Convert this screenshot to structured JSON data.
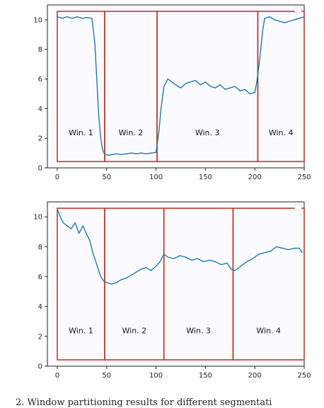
{
  "caption": "2.   Window partitioning results for different segmentati",
  "chart_data": [
    {
      "type": "line",
      "xlim": [
        -10,
        250
      ],
      "ylim": [
        0,
        11
      ],
      "xticks": [
        0,
        50,
        100,
        150,
        200,
        250
      ],
      "yticks": [
        0,
        2,
        4,
        6,
        8,
        10
      ],
      "series_color": "#1f77b4",
      "window_color": "#c0392b",
      "windows": [
        {
          "label": "Win. 1",
          "start": 0,
          "end": 48
        },
        {
          "label": "Win. 2",
          "start": 48,
          "end": 101
        },
        {
          "label": "Win. 3",
          "start": 101,
          "end": 203
        },
        {
          "label": "Win. 4",
          "start": 203,
          "end": 250
        }
      ],
      "x": [
        0,
        5,
        10,
        15,
        20,
        25,
        30,
        35,
        38,
        40,
        42,
        44,
        46,
        48,
        52,
        56,
        60,
        65,
        70,
        75,
        80,
        85,
        90,
        95,
        100,
        103,
        105,
        108,
        112,
        116,
        120,
        125,
        130,
        135,
        140,
        145,
        150,
        155,
        160,
        165,
        170,
        175,
        180,
        185,
        190,
        195,
        200,
        202,
        204,
        206,
        208,
        210,
        215,
        220,
        225,
        230,
        235,
        240,
        245,
        250
      ],
      "y": [
        10.2,
        10.1,
        10.2,
        10.1,
        10.2,
        10.1,
        10.15,
        10.1,
        8.5,
        6.0,
        3.5,
        2.0,
        1.2,
        0.9,
        0.85,
        0.9,
        0.95,
        0.9,
        0.95,
        1.0,
        0.95,
        1.0,
        0.95,
        1.0,
        1.05,
        2.5,
        4.0,
        5.5,
        6.0,
        5.8,
        5.6,
        5.4,
        5.7,
        5.8,
        5.9,
        5.6,
        5.8,
        5.5,
        5.4,
        5.6,
        5.3,
        5.4,
        5.5,
        5.2,
        5.3,
        5.0,
        5.1,
        5.8,
        6.8,
        8.0,
        9.3,
        10.1,
        10.2,
        10.0,
        9.9,
        9.8,
        9.9,
        10.0,
        10.1,
        10.2
      ]
    },
    {
      "type": "line",
      "xlim": [
        -10,
        250
      ],
      "ylim": [
        0,
        11
      ],
      "xticks": [
        0,
        50,
        100,
        150,
        200,
        250
      ],
      "yticks": [
        0,
        2,
        4,
        6,
        8,
        10
      ],
      "series_color": "#1f77b4",
      "window_color": "#c0392b",
      "windows": [
        {
          "label": "Win. 1",
          "start": 0,
          "end": 48
        },
        {
          "label": "Win. 2",
          "start": 48,
          "end": 108
        },
        {
          "label": "Win. 3",
          "start": 108,
          "end": 178
        },
        {
          "label": "Win. 4",
          "start": 178,
          "end": 250
        }
      ],
      "x": [
        0,
        3,
        6,
        10,
        14,
        18,
        22,
        26,
        30,
        33,
        36,
        40,
        44,
        47,
        50,
        55,
        60,
        65,
        70,
        75,
        80,
        85,
        90,
        95,
        100,
        104,
        108,
        112,
        118,
        124,
        130,
        136,
        142,
        148,
        154,
        160,
        166,
        172,
        176,
        180,
        186,
        192,
        198,
        204,
        210,
        216,
        222,
        228,
        234,
        240,
        245,
        248
      ],
      "y": [
        10.5,
        10.0,
        9.6,
        9.4,
        9.2,
        9.6,
        8.9,
        9.4,
        8.8,
        8.4,
        7.6,
        6.8,
        6.0,
        5.7,
        5.6,
        5.5,
        5.6,
        5.8,
        5.9,
        6.1,
        6.3,
        6.5,
        6.6,
        6.4,
        6.7,
        7.0,
        7.5,
        7.3,
        7.2,
        7.4,
        7.3,
        7.1,
        7.2,
        7.0,
        7.1,
        7.0,
        6.8,
        6.9,
        6.5,
        6.4,
        6.7,
        7.0,
        7.2,
        7.5,
        7.6,
        7.7,
        8.0,
        7.9,
        7.8,
        7.9,
        7.9,
        7.6
      ]
    }
  ]
}
